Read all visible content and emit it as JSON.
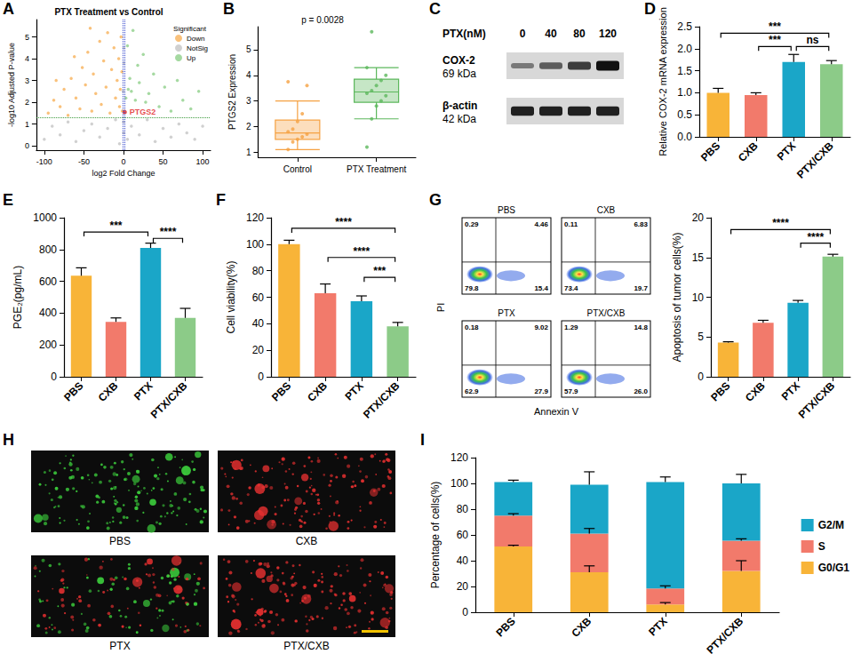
{
  "chart_data": [
    {
      "panel": "A",
      "type": "scatter",
      "title": "PTX Treatment vs Control",
      "x_label": "log2 Fold Change",
      "y_label": "-log10 Adjusted P-value",
      "legend_title": "Significant",
      "legend": "top-right",
      "grid": false,
      "xlim": [
        -110,
        110
      ],
      "xticks": [
        -100,
        -50,
        0,
        50,
        100
      ],
      "ylim": [
        -0.2,
        5.8
      ],
      "yticks": [
        0,
        1,
        2,
        3,
        4,
        5
      ],
      "series": [
        {
          "name": "Down",
          "color": "#f7b25a",
          "values": [
            [
              -95,
              1.5
            ],
            [
              -88,
              2.1
            ],
            [
              -80,
              1.8
            ],
            [
              -75,
              2.6
            ],
            [
              -70,
              1.4
            ],
            [
              -66,
              3.1
            ],
            [
              -60,
              2.2
            ],
            [
              -55,
              1.7
            ],
            [
              -52,
              3.6
            ],
            [
              -48,
              2.8
            ],
            [
              -45,
              4.3
            ],
            [
              -40,
              1.6
            ],
            [
              -38,
              3.3
            ],
            [
              -35,
              2.4
            ],
            [
              -30,
              4.8
            ],
            [
              -28,
              1.9
            ],
            [
              -25,
              3.9
            ],
            [
              -22,
              2.7
            ],
            [
              -20,
              5.2
            ],
            [
              -17,
              1.5
            ],
            [
              -15,
              3.5
            ],
            [
              -12,
              4.5
            ],
            [
              -10,
              2.2
            ],
            [
              -8,
              3.0
            ],
            [
              -6,
              4.0
            ],
            [
              -5,
              1.8
            ],
            [
              -4,
              2.6
            ],
            [
              -3,
              5.0
            ],
            [
              -2,
              3.4
            ],
            [
              -1.5,
              1.6
            ],
            [
              -85,
              3.0
            ],
            [
              -62,
              4.1
            ],
            [
              -42,
              5.4
            ]
          ]
        },
        {
          "name": "NotSig",
          "color": "#c4c4c4",
          "values": [
            [
              -100,
              0.3
            ],
            [
              -90,
              0.9
            ],
            [
              -80,
              0.5
            ],
            [
              -70,
              1.1
            ],
            [
              -60,
              0.2
            ],
            [
              -50,
              0.7
            ],
            [
              -40,
              1.0
            ],
            [
              -30,
              0.4
            ],
            [
              -20,
              0.8
            ],
            [
              -10,
              1.2
            ],
            [
              -5,
              0.1
            ],
            [
              0,
              0.6
            ],
            [
              0,
              1.1
            ],
            [
              5,
              0.3
            ],
            [
              10,
              0.9
            ],
            [
              20,
              0.5
            ],
            [
              30,
              1.2
            ],
            [
              40,
              0.2
            ],
            [
              50,
              0.8
            ],
            [
              60,
              0.4
            ],
            [
              70,
              1.0
            ],
            [
              80,
              0.6
            ],
            [
              90,
              0.3
            ],
            [
              100,
              0.9
            ],
            [
              -0.5,
              2.5
            ],
            [
              0.5,
              3.8
            ],
            [
              0.3,
              4.5
            ]
          ]
        },
        {
          "name": "Up",
          "color": "#8fd08a",
          "values": [
            [
              3,
              2.2
            ],
            [
              5,
              4.6
            ],
            [
              6,
              2.6
            ],
            [
              8,
              3.1
            ],
            [
              10,
              2.5
            ],
            [
              12,
              5.3
            ],
            [
              15,
              2.1
            ],
            [
              18,
              3.7
            ],
            [
              20,
              2.9
            ],
            [
              25,
              4.2
            ],
            [
              28,
              2.0
            ],
            [
              32,
              2.4
            ],
            [
              38,
              3.3
            ],
            [
              45,
              1.8
            ],
            [
              52,
              2.7
            ],
            [
              60,
              1.6
            ],
            [
              68,
              3.0
            ],
            [
              75,
              2.1
            ],
            [
              85,
              1.7
            ],
            [
              95,
              2.5
            ]
          ]
        }
      ],
      "hlines": [
        1.3
      ],
      "vlines": [
        -1,
        1
      ],
      "highlight": {
        "label": "PTGS2",
        "x": 1.5,
        "y": 1.55,
        "color": "#e02020"
      }
    },
    {
      "panel": "B",
      "type": "boxplot",
      "categories": [
        "Control",
        "PTX Treatment"
      ],
      "y_label": "PTGS2 Expression",
      "annotation": "p = 0.0028",
      "grid": false,
      "ylim": [
        0.8,
        5.9
      ],
      "yticks": [
        1,
        2,
        3,
        4,
        5
      ],
      "colors": [
        "#f5a142",
        "#5cb85c"
      ],
      "boxes": [
        [
          1.1,
          1.5,
          1.75,
          2.25,
          3.0
        ],
        [
          2.3,
          2.95,
          3.35,
          3.85,
          4.3
        ]
      ],
      "points": [
        [
          1.1,
          1.4,
          1.5,
          1.6,
          1.7,
          1.8,
          1.9,
          2.2,
          2.5,
          3.6,
          3.75
        ],
        [
          1.2,
          2.3,
          2.8,
          3.0,
          3.2,
          3.3,
          3.4,
          3.6,
          3.8,
          4.0,
          4.3,
          5.7
        ]
      ]
    },
    {
      "panel": "C",
      "type": "blot",
      "title": "PTX(nM)",
      "lanes": [
        "0",
        "40",
        "80",
        "120"
      ],
      "rows": [
        {
          "name": "COX-2",
          "size": "69 kDa",
          "intensity": [
            0.3,
            0.5,
            0.7,
            1.0
          ]
        },
        {
          "name": "β-actin",
          "size": "42 kDa",
          "intensity": [
            0.9,
            0.9,
            0.9,
            0.9
          ]
        }
      ]
    },
    {
      "panel": "D",
      "type": "bar",
      "categories": [
        "PBS",
        "CXB",
        "PTX",
        "PTX/CXB"
      ],
      "y_label": "Relative COX-2 mRNA expression",
      "grid": false,
      "values": [
        1.0,
        0.95,
        1.7,
        1.65
      ],
      "errors": [
        0.1,
        0.05,
        0.17,
        0.08
      ],
      "colors": [
        "#f8b438",
        "#f27a6b",
        "#1aa6c8",
        "#8ccb88"
      ],
      "ylim": [
        0,
        2.5
      ],
      "yticks": [
        {
          "value": 0,
          "label": "0.0"
        },
        {
          "value": 0.5,
          "label": "0.5"
        },
        {
          "value": 1,
          "label": "1.0"
        },
        {
          "value": 1.5,
          "label": "1.5"
        },
        {
          "value": 2,
          "label": "2.0"
        },
        {
          "value": 2.5,
          "label": "2.5"
        }
      ],
      "annotations": [
        {
          "from": "PBS",
          "to": "PTX/CXB",
          "y": 2.35,
          "text": "***"
        },
        {
          "from": "CXB",
          "to": "PTX",
          "y": 2.05,
          "text": "***"
        },
        {
          "from": "PTX",
          "to": "PTX/CXB",
          "y": 2.05,
          "text": "ns"
        }
      ]
    },
    {
      "panel": "E",
      "type": "bar",
      "categories": [
        "PBS",
        "CXB",
        "PTX",
        "PTX/CXB"
      ],
      "y_label": "PGE₂(pg/mL)",
      "grid": false,
      "values": [
        635,
        345,
        810,
        370
      ],
      "errors": [
        50,
        25,
        30,
        60
      ],
      "colors": [
        "#f8b438",
        "#f27a6b",
        "#1aa6c8",
        "#8ccb88"
      ],
      "ylim": [
        0,
        1000
      ],
      "yticks": [
        0,
        200,
        400,
        600,
        800,
        1000
      ],
      "annotations": [
        {
          "from": "PBS",
          "to": "PTX",
          "y": 910,
          "text": "***"
        },
        {
          "from": "PTX",
          "to": "PTX/CXB",
          "y": 870,
          "text": "****"
        }
      ]
    },
    {
      "panel": "F",
      "type": "bar",
      "categories": [
        "PBS",
        "CXB",
        "PTX",
        "PTX/CXB"
      ],
      "y_label": "Cell viability(%)",
      "grid": false,
      "values": [
        100,
        63,
        57,
        38
      ],
      "errors": [
        3,
        7,
        4,
        3
      ],
      "colors": [
        "#f8b438",
        "#f27a6b",
        "#1aa6c8",
        "#8ccb88"
      ],
      "ylim": [
        0,
        120
      ],
      "yticks": [
        0,
        20,
        40,
        60,
        80,
        100,
        120
      ],
      "annotations": [
        {
          "from": "PBS",
          "to": "PTX/CXB",
          "y": 112,
          "text": "****"
        },
        {
          "from": "CXB",
          "to": "PTX/CXB",
          "y": 90,
          "text": "****"
        },
        {
          "from": "PTX",
          "to": "PTX/CXB",
          "y": 75,
          "text": "***"
        }
      ]
    },
    {
      "panel": "G",
      "type": "flow_quadrants",
      "x_label": "Annexin V",
      "y_label": "PI",
      "plots": [
        {
          "name": "PBS",
          "quadrants": {
            "upper_left": "0.29",
            "upper_right": "4.46",
            "lower_left": "79.8",
            "lower_right": "15.4"
          }
        },
        {
          "name": "CXB",
          "quadrants": {
            "upper_left": "0.11",
            "upper_right": "6.83",
            "lower_left": "73.4",
            "lower_right": "19.7"
          }
        },
        {
          "name": "PTX",
          "quadrants": {
            "upper_left": "0.18",
            "upper_right": "9.02",
            "lower_left": "62.9",
            "lower_right": "27.9"
          }
        },
        {
          "name": "PTX/CXB",
          "quadrants": {
            "upper_left": "1.29",
            "upper_right": "14.8",
            "lower_left": "57.9",
            "lower_right": "26.0"
          }
        }
      ]
    },
    {
      "type": "bar",
      "categories": [
        "PBS",
        "CXB",
        "PTX",
        "PTX/CXB"
      ],
      "y_label": "Apoptosis of tumor cells(%)",
      "grid": false,
      "values": [
        4.3,
        6.8,
        9.3,
        15.1
      ],
      "errors": [
        0.1,
        0.3,
        0.3,
        0.3
      ],
      "colors": [
        "#f8b438",
        "#f27a6b",
        "#1aa6c8",
        "#8ccb88"
      ],
      "ylim": [
        0,
        20
      ],
      "yticks": [
        0,
        5,
        10,
        15,
        20
      ],
      "annotations": [
        {
          "from": "PBS",
          "to": "PTX/CXB",
          "y": 18.5,
          "text": "****"
        },
        {
          "from": "PTX",
          "to": "PTX/CXB",
          "y": 16.8,
          "text": "****"
        }
      ]
    },
    {
      "panel": "H",
      "type": "images",
      "images": [
        {
          "label": "PBS",
          "colors": [
            "#3ccf3c"
          ]
        },
        {
          "label": "CXB",
          "colors": [
            "#e53030"
          ]
        },
        {
          "label": "PTX",
          "colors": [
            "#e53030",
            "#3ccf3c"
          ]
        },
        {
          "label": "PTX/CXB",
          "colors": [
            "#e53030"
          ]
        }
      ]
    },
    {
      "panel": "I",
      "type": "bar",
      "stacked": true,
      "legend": "right",
      "grid": false,
      "categories": [
        "PBS",
        "CXB",
        "PTX",
        "PTX/CXB"
      ],
      "y_label": "Percentage of cells(%)",
      "ylim": [
        0,
        120
      ],
      "yticks": [
        0,
        20,
        40,
        60,
        80,
        100,
        120
      ],
      "series": [
        {
          "name": "G0/G1",
          "color": "#f8b438",
          "values": [
            51,
            31,
            6,
            32
          ],
          "errors": [
            1,
            5,
            1.5,
            8
          ]
        },
        {
          "name": "S",
          "color": "#f27a6b",
          "values": [
            24,
            30,
            12.5,
            23.5
          ],
          "errors": [
            1.5,
            4,
            2,
            1.5
          ]
        },
        {
          "name": "G2/M",
          "color": "#1aa6c8",
          "values": [
            26,
            38,
            82.5,
            44.5
          ],
          "errors": [
            1.5,
            10,
            4,
            7
          ]
        }
      ]
    }
  ]
}
